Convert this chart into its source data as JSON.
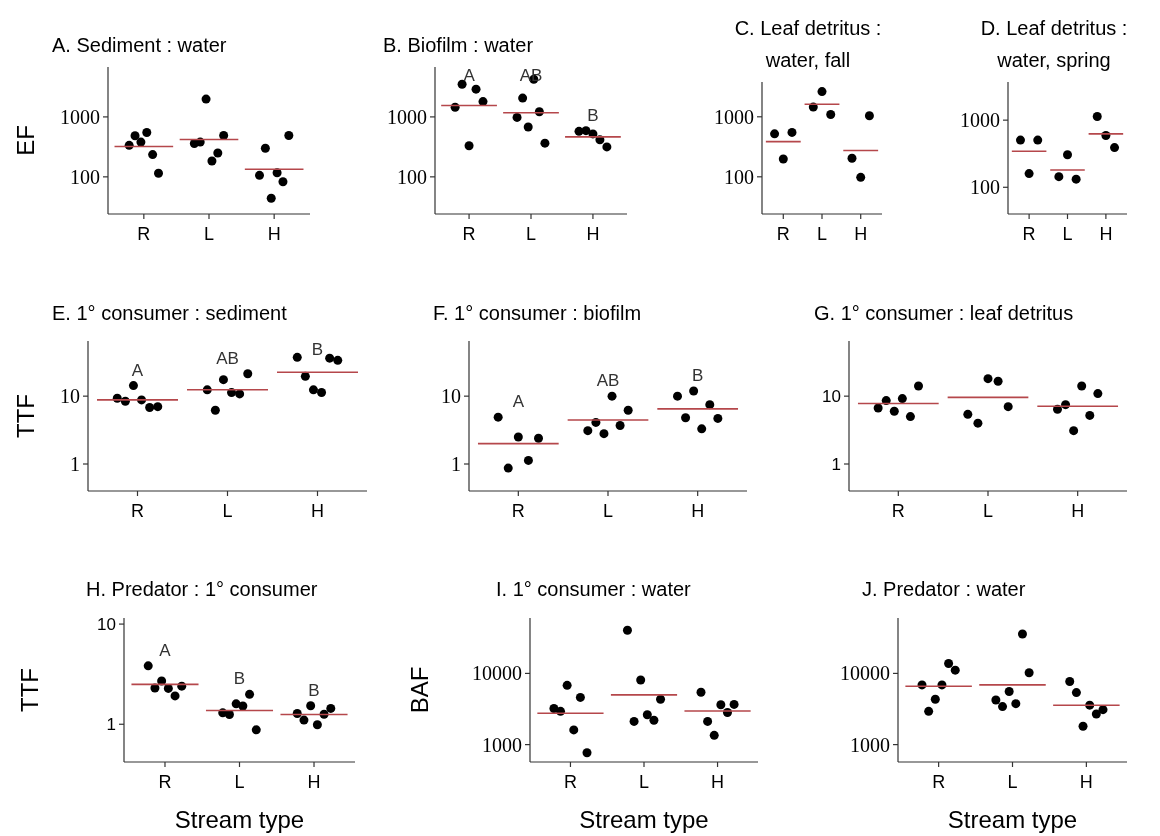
{
  "chart_data": [
    {
      "type": "scatter",
      "title": "A. Sediment : water",
      "ylabel": "EF",
      "log": true,
      "marker": "circle",
      "categories": [
        "R",
        "L",
        "H"
      ],
      "ylim": [
        24,
        6800
      ],
      "yticks": [
        100,
        1000
      ],
      "series": [
        {
          "color": "#000000",
          "x": [
            "R",
            "R",
            "R",
            "R",
            "R",
            "R",
            "L",
            "L",
            "L",
            "L",
            "L",
            "L",
            "H",
            "H",
            "H",
            "H",
            "H",
            "H"
          ],
          "values": [
            335,
            484,
            380,
            550,
            235,
            115,
            360,
            380,
            1980,
            184,
            250,
            490,
            106,
            300,
            44,
            117,
            83,
            490
          ]
        },
        {
          "type": "box",
          "color": "#b5474b",
          "boxes": [
            {
              "low": 320,
              "q1": 320,
              "median": 320,
              "q3": 320,
              "high": 320
            },
            {
              "low": 420,
              "q1": 420,
              "median": 420,
              "q3": 420,
              "high": 420
            },
            {
              "low": 134,
              "q1": 134,
              "median": 134,
              "q3": 134,
              "high": 134
            }
          ]
        }
      ]
    },
    {
      "type": "scatter",
      "title": "B. Biofilm : water",
      "log": true,
      "marker": "circle",
      "categories": [
        "R",
        "L",
        "H"
      ],
      "ylim": [
        24,
        6800
      ],
      "yticks": [
        100,
        1000
      ],
      "series": [
        {
          "color": "#000000",
          "x": [
            "R",
            "R",
            "R",
            "R",
            "R",
            "L",
            "L",
            "L",
            "L",
            "L",
            "L",
            "H",
            "H",
            "H",
            "H",
            "H"
          ],
          "values": [
            1450,
            3500,
            330,
            2900,
            1800,
            980,
            2060,
            680,
            4250,
            1220,
            365,
            575,
            590,
            520,
            415,
            316
          ]
        },
        {
          "type": "box",
          "color": "#b5474b",
          "boxes": [
            {
              "low": 1550,
              "q1": 1550,
              "median": 1550,
              "q3": 1550,
              "high": 1550
            },
            {
              "low": 1170,
              "q1": 1170,
              "median": 1170,
              "q3": 1170,
              "high": 1170
            },
            {
              "low": 465,
              "q1": 465,
              "median": 465,
              "q3": 465,
              "high": 465
            }
          ]
        }
      ],
      "annotations": [
        "A",
        "AB",
        "B"
      ]
    },
    {
      "type": "scatter",
      "title": "C. Leaf detritus : water, fall",
      "log": true,
      "marker": "circle",
      "categories": [
        "R",
        "L",
        "H"
      ],
      "ylim": [
        24,
        3800
      ],
      "yticks": [
        100,
        1000
      ],
      "series": [
        {
          "color": "#000000",
          "x": [
            "R",
            "R",
            "R",
            "L",
            "L",
            "L",
            "H",
            "H",
            "H"
          ],
          "values": [
            520,
            198,
            550,
            1450,
            2630,
            1090,
            204,
            98,
            1040
          ]
        },
        {
          "type": "box",
          "color": "#b5474b",
          "boxes": [
            {
              "low": 385,
              "q1": 385,
              "median": 385,
              "q3": 385,
              "high": 385
            },
            {
              "low": 1620,
              "q1": 1620,
              "median": 1620,
              "q3": 1620,
              "high": 1620
            },
            {
              "low": 275,
              "q1": 275,
              "median": 275,
              "q3": 275,
              "high": 275
            }
          ]
        }
      ]
    },
    {
      "type": "scatter",
      "title": "D. Leaf detritus : water, spring",
      "log": true,
      "marker": "circle",
      "categories": [
        "R",
        "L",
        "H"
      ],
      "ylim": [
        40,
        3700
      ],
      "yticks": [
        100,
        1000
      ],
      "series": [
        {
          "color": "#000000",
          "x": [
            "R",
            "R",
            "R",
            "L",
            "L",
            "L",
            "H",
            "H",
            "H"
          ],
          "values": [
            505,
            160,
            505,
            144,
            305,
            132,
            1135,
            590,
            390
          ]
        },
        {
          "type": "box",
          "color": "#b5474b",
          "boxes": [
            {
              "low": 345,
              "q1": 345,
              "median": 345,
              "q3": 345,
              "high": 345
            },
            {
              "low": 181,
              "q1": 181,
              "median": 181,
              "q3": 181,
              "high": 181
            },
            {
              "low": 625,
              "q1": 625,
              "median": 625,
              "q3": 625,
              "high": 625
            }
          ]
        }
      ]
    },
    {
      "type": "scatter",
      "title": "E. 1° consumer : sediment",
      "ylabel": "TTF",
      "log": true,
      "marker": "circle",
      "categories": [
        "R",
        "L",
        "H"
      ],
      "ylim": [
        0.4,
        65
      ],
      "yticks": [
        1,
        10
      ],
      "series": [
        {
          "color": "#000000",
          "x": [
            "R",
            "R",
            "R",
            "R",
            "R",
            "R",
            "L",
            "L",
            "L",
            "L",
            "L",
            "L",
            "H",
            "H",
            "H",
            "H",
            "H",
            "H"
          ],
          "values": [
            9.3,
            8.4,
            14.3,
            8.8,
            6.8,
            7.0,
            12.4,
            6.2,
            17.5,
            11.3,
            10.8,
            21.4,
            37.3,
            19.6,
            12.4,
            11.3,
            36.3,
            33.7
          ]
        },
        {
          "type": "box",
          "color": "#b5474b",
          "boxes": [
            {
              "low": 8.8,
              "q1": 8.8,
              "median": 8.8,
              "q3": 8.8,
              "high": 8.8
            },
            {
              "low": 12.4,
              "q1": 12.4,
              "median": 12.4,
              "q3": 12.4,
              "high": 12.4
            },
            {
              "low": 22.5,
              "q1": 22.5,
              "median": 22.5,
              "q3": 22.5,
              "high": 22.5
            }
          ]
        }
      ],
      "annotations": [
        "A",
        "AB",
        "B"
      ]
    },
    {
      "type": "scatter",
      "title": "F. 1° consumer : biofilm",
      "log": true,
      "marker": "circle",
      "categories": [
        "R",
        "L",
        "H"
      ],
      "ylim": [
        0.4,
        65
      ],
      "yticks": [
        1,
        10
      ],
      "series": [
        {
          "color": "#000000",
          "x": [
            "R",
            "R",
            "R",
            "R",
            "R",
            "L",
            "L",
            "L",
            "L",
            "L",
            "L",
            "H",
            "H",
            "H",
            "H",
            "H",
            "H"
          ],
          "values": [
            4.9,
            0.87,
            2.5,
            1.13,
            2.4,
            3.1,
            4.1,
            2.8,
            10,
            3.7,
            6.2,
            10,
            4.8,
            11.9,
            3.3,
            7.5,
            4.7
          ]
        },
        {
          "type": "box",
          "color": "#b5474b",
          "boxes": [
            {
              "low": 2.0,
              "q1": 2.0,
              "median": 2.0,
              "q3": 2.0,
              "high": 2.0
            },
            {
              "low": 4.45,
              "q1": 4.45,
              "median": 4.45,
              "q3": 4.45,
              "high": 4.45
            },
            {
              "low": 6.5,
              "q1": 6.5,
              "median": 6.5,
              "q3": 6.5,
              "high": 6.5
            }
          ]
        }
      ],
      "annotations": [
        "A",
        "AB",
        "B"
      ]
    },
    {
      "type": "scatter",
      "title": "G. 1° consumer : leaf detritus",
      "log": true,
      "marker": "circle",
      "categories": [
        "R",
        "L",
        "H"
      ],
      "ylim": [
        0.4,
        65
      ],
      "yticks": [
        1,
        10
      ],
      "series": [
        {
          "color": "#000000",
          "x": [
            "R",
            "R",
            "R",
            "R",
            "R",
            "R",
            "L",
            "L",
            "L",
            "L",
            "L",
            "H",
            "H",
            "H",
            "H",
            "H",
            "H"
          ],
          "values": [
            6.7,
            8.6,
            6.0,
            9.2,
            5.0,
            14.1,
            5.4,
            4.0,
            18.1,
            16.6,
            7.0,
            6.4,
            7.5,
            3.1,
            14.1,
            5.2,
            10.9
          ]
        },
        {
          "type": "box",
          "color": "#b5474b",
          "boxes": [
            {
              "low": 7.8,
              "q1": 7.8,
              "median": 7.8,
              "q3": 7.8,
              "high": 7.8
            },
            {
              "low": 9.6,
              "q1": 9.6,
              "median": 9.6,
              "q3": 9.6,
              "high": 9.6
            },
            {
              "low": 7.1,
              "q1": 7.1,
              "median": 7.1,
              "q3": 7.1,
              "high": 7.1
            }
          ]
        }
      ]
    },
    {
      "type": "scatter",
      "title": "H. Predator : 1° consumer",
      "ylabel": "TTF",
      "xlabel": "Stream type",
      "log": true,
      "marker": "circle",
      "categories": [
        "R",
        "L",
        "H"
      ],
      "ylim": [
        0.42,
        11.5
      ],
      "yticks": [
        1,
        10
      ],
      "series": [
        {
          "color": "#000000",
          "x": [
            "R",
            "R",
            "R",
            "R",
            "R",
            "R",
            "L",
            "L",
            "L",
            "L",
            "L",
            "L",
            "H",
            "H",
            "H",
            "H",
            "H",
            "H"
          ],
          "values": [
            3.83,
            2.3,
            2.7,
            2.28,
            1.92,
            2.4,
            1.3,
            1.25,
            1.6,
            1.52,
            1.99,
            0.88,
            1.28,
            1.1,
            1.53,
            0.99,
            1.26,
            1.44
          ]
        },
        {
          "type": "box",
          "color": "#b5474b",
          "boxes": [
            {
              "low": 2.5,
              "q1": 2.5,
              "median": 2.5,
              "q3": 2.5,
              "high": 2.5
            },
            {
              "low": 1.37,
              "q1": 1.37,
              "median": 1.37,
              "q3": 1.37,
              "high": 1.37
            },
            {
              "low": 1.25,
              "q1": 1.25,
              "median": 1.25,
              "q3": 1.25,
              "high": 1.25
            }
          ]
        }
      ],
      "annotations": [
        "A",
        "B",
        "B"
      ]
    },
    {
      "type": "scatter",
      "title": "I. 1° consumer : water",
      "ylabel": "BAF",
      "xlabel": "Stream type",
      "log": true,
      "marker": "circle",
      "categories": [
        "R",
        "L",
        "H"
      ],
      "ylim": [
        570,
        60000
      ],
      "yticks": [
        1000,
        10000
      ],
      "series": [
        {
          "color": "#000000",
          "x": [
            "R",
            "R",
            "R",
            "R",
            "R",
            "R",
            "L",
            "L",
            "L",
            "L",
            "L",
            "L",
            "H",
            "H",
            "H",
            "H",
            "H",
            "H"
          ],
          "values": [
            3220,
            2930,
            6800,
            1610,
            4600,
            770,
            40400,
            2120,
            8070,
            2630,
            2200,
            4340,
            5440,
            2120,
            1350,
            3630,
            2820,
            3670
          ]
        },
        {
          "type": "box",
          "color": "#b5474b",
          "boxes": [
            {
              "low": 2760,
              "q1": 2760,
              "median": 2760,
              "q3": 2760,
              "high": 2760
            },
            {
              "low": 5000,
              "q1": 5000,
              "median": 5000,
              "q3": 5000,
              "high": 5000
            },
            {
              "low": 2960,
              "q1": 2960,
              "median": 2960,
              "q3": 2960,
              "high": 2960
            }
          ]
        }
      ]
    },
    {
      "type": "scatter",
      "title": "J. Predator : water",
      "xlabel": "Stream type",
      "log": true,
      "marker": "circle",
      "categories": [
        "R",
        "L",
        "H"
      ],
      "ylim": [
        570,
        60000
      ],
      "yticks": [
        1000,
        10000
      ],
      "series": [
        {
          "color": "#000000",
          "x": [
            "R",
            "R",
            "R",
            "R",
            "R",
            "R",
            "L",
            "L",
            "L",
            "L",
            "L",
            "L",
            "H",
            "H",
            "H",
            "H",
            "H",
            "H"
          ],
          "values": [
            6900,
            2930,
            4340,
            6900,
            13800,
            11100,
            4240,
            3420,
            5570,
            3760,
            35800,
            10200,
            7690,
            5380,
            1810,
            3580,
            2690,
            3100
          ]
        },
        {
          "type": "box",
          "color": "#b5474b",
          "boxes": [
            {
              "low": 6600,
              "q1": 6600,
              "median": 6600,
              "q3": 6600,
              "high": 6600
            },
            {
              "low": 6900,
              "q1": 6900,
              "median": 6900,
              "q3": 6900,
              "high": 6900
            },
            {
              "low": 3580,
              "q1": 3580,
              "median": 3580,
              "q3": 3580,
              "high": 3580
            }
          ]
        }
      ]
    }
  ]
}
